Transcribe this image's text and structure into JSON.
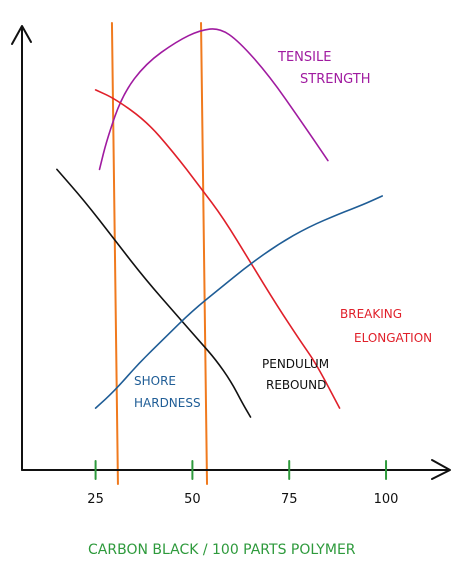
{
  "chart_data": {
    "type": "line",
    "title": "",
    "xlabel": "CARBON BLACK / 100 PARTS POLYMER",
    "ylabel": "",
    "x_ticks": [
      "25",
      "50",
      "75",
      "100"
    ],
    "xlim": [
      6,
      116
    ],
    "ylim": [
      0,
      100
    ],
    "grid": false,
    "vertical_lines": [
      {
        "x": 30,
        "color": "#f07a1e"
      },
      {
        "x": 53,
        "color": "#f07a1e"
      }
    ],
    "series": [
      {
        "name": "TENSILE STRENGTH",
        "color": "#a01ba0",
        "label_lines": [
          "TENSILE",
          "STRENGTH"
        ],
        "points": [
          [
            26,
            68
          ],
          [
            28,
            75
          ],
          [
            32,
            85
          ],
          [
            38,
            92
          ],
          [
            46,
            97
          ],
          [
            52,
            99.5
          ],
          [
            57,
            100
          ],
          [
            62,
            97
          ],
          [
            70,
            89
          ],
          [
            78,
            79
          ],
          [
            85,
            70
          ]
        ]
      },
      {
        "name": "BREAKING ELONGATION",
        "color": "#e0202a",
        "label_lines": [
          "BREAKING",
          "ELONGATION"
        ],
        "points": [
          [
            25,
            86
          ],
          [
            30,
            84
          ],
          [
            38,
            79
          ],
          [
            45,
            72
          ],
          [
            52,
            64
          ],
          [
            58,
            57
          ],
          [
            65,
            47
          ],
          [
            72,
            37
          ],
          [
            78,
            29
          ],
          [
            82,
            24
          ],
          [
            88,
            14
          ]
        ]
      },
      {
        "name": "PENDULUM REBOUND",
        "color": "#111111",
        "label_lines": [
          "PENDULUM",
          "REBOUND"
        ],
        "points": [
          [
            15,
            68
          ],
          [
            22,
            61
          ],
          [
            30,
            52
          ],
          [
            38,
            43
          ],
          [
            46,
            35
          ],
          [
            52,
            29
          ],
          [
            56,
            25
          ],
          [
            60,
            20
          ],
          [
            63,
            15
          ],
          [
            65,
            12
          ]
        ]
      },
      {
        "name": "SHORE HARDNESS",
        "color": "#1f5d96",
        "label_lines": [
          "SHORE",
          "HARDNESS"
        ],
        "points": [
          [
            25,
            14
          ],
          [
            30,
            18
          ],
          [
            36,
            24
          ],
          [
            43,
            30
          ],
          [
            50,
            36
          ],
          [
            57,
            41
          ],
          [
            64,
            46
          ],
          [
            72,
            51
          ],
          [
            80,
            55
          ],
          [
            88,
            58
          ],
          [
            94,
            60
          ],
          [
            99,
            62
          ]
        ]
      }
    ],
    "colors": {
      "axis": "#111111",
      "tick": "#2e9a3c",
      "xlabel": "#2e9a3c"
    }
  }
}
